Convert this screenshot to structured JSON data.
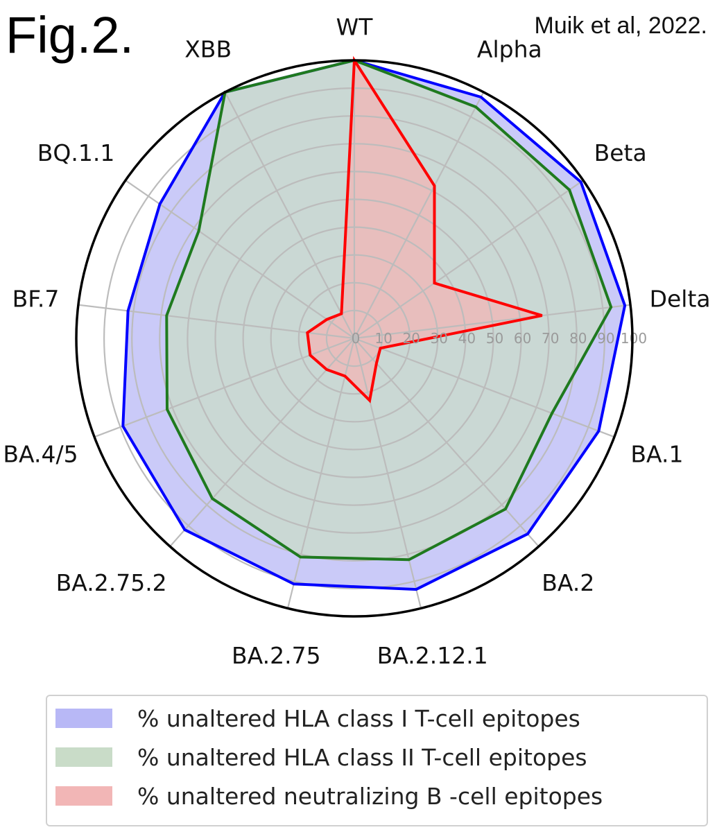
{
  "figure": {
    "label": "Fig.2.",
    "citation": "Muik et al, 2022."
  },
  "chart_data": {
    "type": "radar",
    "categories": [
      "WT",
      "Alpha",
      "Beta",
      "Delta",
      "BA.1",
      "BA.2",
      "BA.2.12.1",
      "BA.2.75",
      "BA.2.75.2",
      "BA.4/5",
      "BF.7",
      "BQ.1.1",
      "XBB"
    ],
    "radial_ticks": [
      "0",
      "10",
      "20",
      "30",
      "40",
      "50",
      "60",
      "70",
      "80",
      "90",
      "100"
    ],
    "rlim": [
      0,
      100
    ],
    "grid": true,
    "legend_position": "bottom",
    "series": [
      {
        "name": "% unaltered HLA class I T-cell epitopes",
        "line_color": "#0000ff",
        "fill_color": "#b8b8f6",
        "values": [
          100,
          98,
          99,
          98,
          94,
          94,
          93,
          91,
          92,
          89,
          82,
          85,
          100
        ]
      },
      {
        "name": "% unaltered HLA class II T-cell epitopes",
        "line_color": "#1f7a1f",
        "fill_color": "#c9dcc8",
        "values": [
          100,
          94,
          94,
          93,
          76,
          82,
          82,
          81,
          77,
          72,
          68,
          68,
          100
        ]
      },
      {
        "name": "% unaltered neutralizing B -cell epitopes",
        "line_color": "#ff0000",
        "fill_color": "#f2b6b6",
        "values": [
          100,
          62,
          35,
          68,
          10,
          12,
          23,
          14,
          15,
          17,
          17,
          12,
          10
        ]
      }
    ]
  }
}
